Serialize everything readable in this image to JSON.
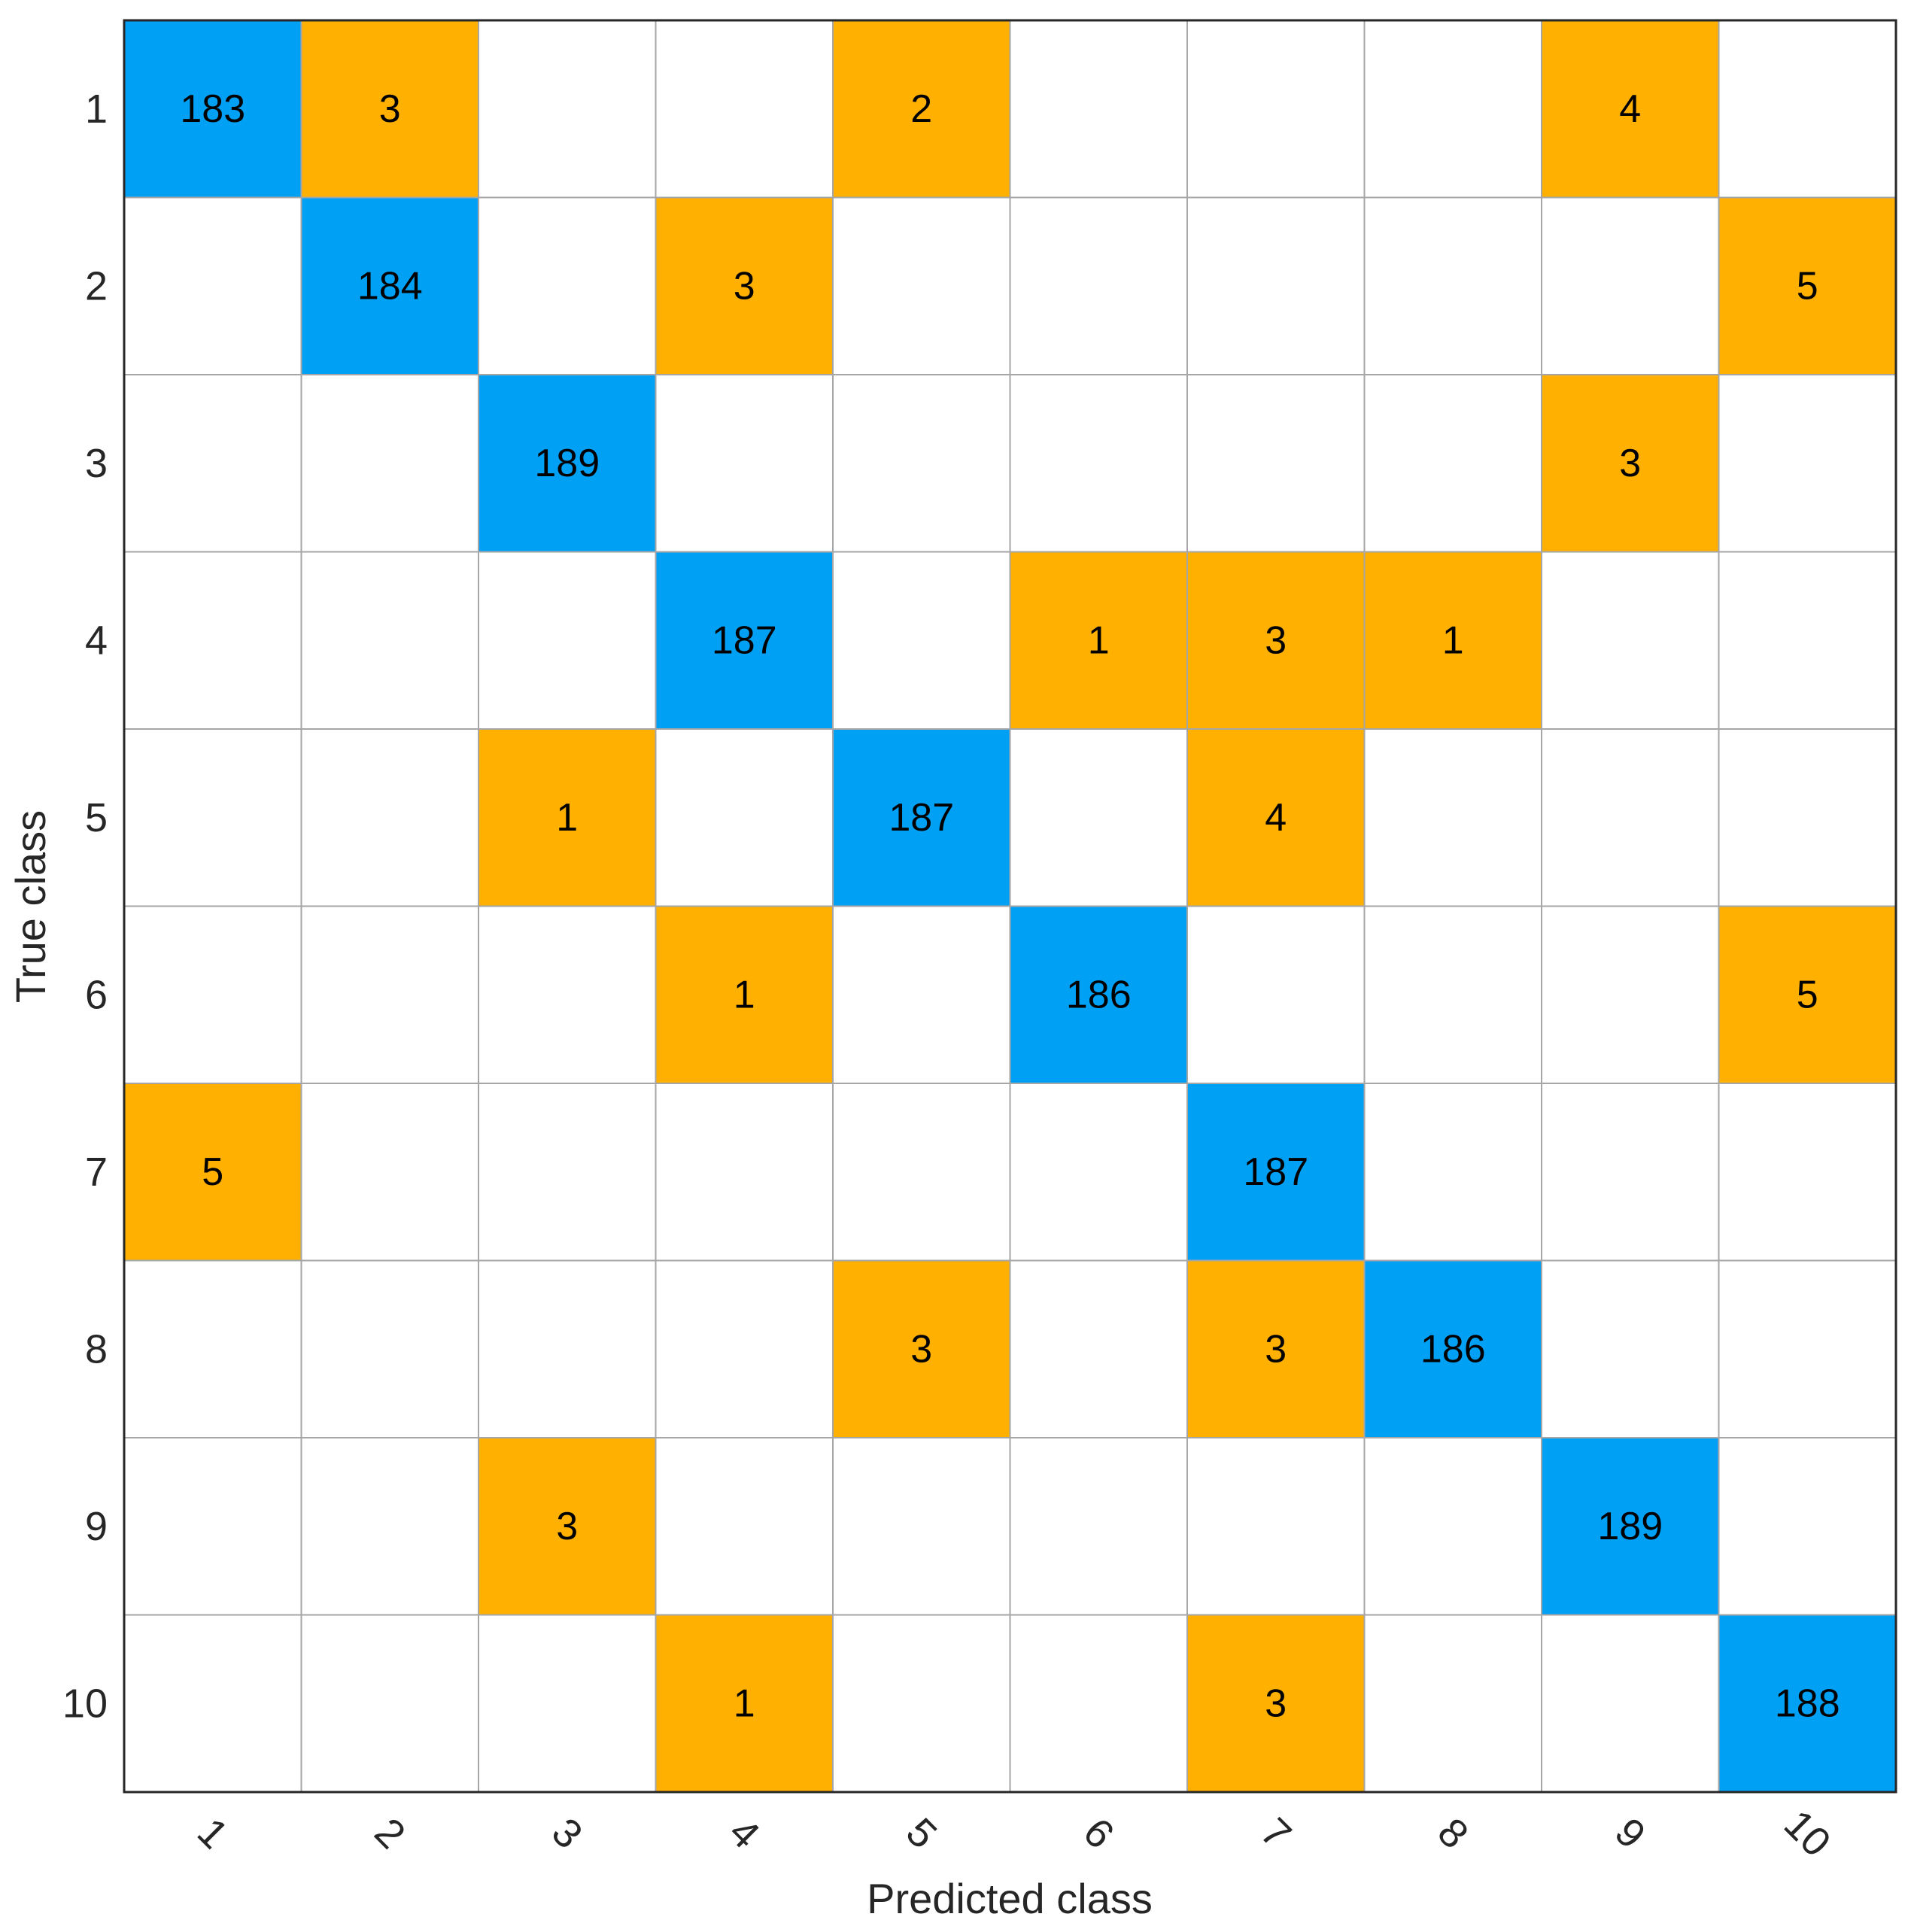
{
  "chart_data": {
    "type": "heatmap",
    "title": "",
    "xlabel": "Predicted class",
    "ylabel": "True class",
    "x_categories": [
      "1",
      "2",
      "3",
      "4",
      "5",
      "6",
      "7",
      "8",
      "9",
      "10"
    ],
    "y_categories": [
      "1",
      "2",
      "3",
      "4",
      "5",
      "6",
      "7",
      "8",
      "9",
      "10"
    ],
    "matrix": [
      [
        183,
        3,
        0,
        0,
        2,
        0,
        0,
        0,
        4,
        0
      ],
      [
        0,
        184,
        0,
        3,
        0,
        0,
        0,
        0,
        0,
        5
      ],
      [
        0,
        0,
        189,
        0,
        0,
        0,
        0,
        0,
        3,
        0
      ],
      [
        0,
        0,
        0,
        187,
        0,
        1,
        3,
        1,
        0,
        0
      ],
      [
        0,
        0,
        1,
        0,
        187,
        0,
        4,
        0,
        0,
        0
      ],
      [
        0,
        0,
        0,
        1,
        0,
        186,
        0,
        0,
        0,
        5
      ],
      [
        5,
        0,
        0,
        0,
        0,
        0,
        187,
        0,
        0,
        0
      ],
      [
        0,
        0,
        0,
        0,
        3,
        0,
        3,
        186,
        0,
        0
      ],
      [
        0,
        0,
        3,
        0,
        0,
        0,
        0,
        0,
        189,
        0
      ],
      [
        0,
        0,
        0,
        1,
        0,
        0,
        3,
        0,
        0,
        188
      ]
    ],
    "colors": {
      "correct": "#00A0F5",
      "incorrect": "#FFB000",
      "empty": "#FFFFFF",
      "grid": "#A6A6A6",
      "border": "#262626"
    }
  }
}
